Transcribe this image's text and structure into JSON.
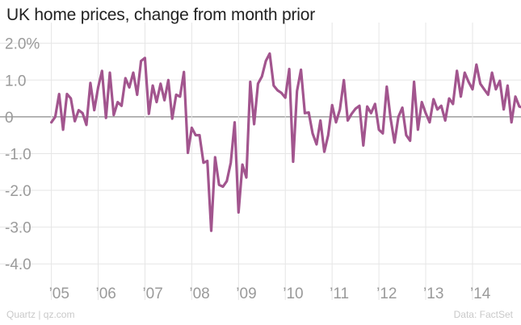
{
  "title": "UK home prices, change from month prior",
  "footer": {
    "source_left": "Quartz | qz.com",
    "source_right": "Data: FactSet"
  },
  "colors": {
    "line": "#a2558e",
    "grid": "#e6e6e6",
    "zero_line": "#8a8a8a",
    "tick_text": "#9a9a9a"
  },
  "chart_data": {
    "type": "line",
    "title": "UK home prices, change from month prior",
    "xlabel": "",
    "ylabel": "",
    "ylim": [
      -4.5,
      2.3
    ],
    "xlim": [
      2004.8,
      2014.95
    ],
    "y_ticks": [
      {
        "value": 2.0,
        "label": "2.0%"
      },
      {
        "value": 1.0,
        "label": "1.0"
      },
      {
        "value": 0,
        "label": "0"
      },
      {
        "value": -1.0,
        "label": "-1.0"
      },
      {
        "value": -2.0,
        "label": "-2.0"
      },
      {
        "value": -3.0,
        "label": "-3.0"
      },
      {
        "value": -4.0,
        "label": "-4.0"
      }
    ],
    "x_ticks": [
      {
        "value": 2005,
        "label": "’05"
      },
      {
        "value": 2006,
        "label": "’06"
      },
      {
        "value": 2007,
        "label": "’07"
      },
      {
        "value": 2008,
        "label": "’08"
      },
      {
        "value": 2009,
        "label": "’09"
      },
      {
        "value": 2010,
        "label": "’10"
      },
      {
        "value": 2011,
        "label": "’11"
      },
      {
        "value": 2012,
        "label": "’12"
      },
      {
        "value": 2013,
        "label": "’13"
      },
      {
        "value": 2014,
        "label": "’14"
      }
    ],
    "grid": true,
    "x_start": "2005-01",
    "series": [
      {
        "values": [
          -0.15,
          0.0,
          0.62,
          -0.35,
          0.62,
          0.5,
          -0.12,
          0.18,
          0.1,
          -0.22,
          0.92,
          0.18,
          0.8,
          1.25,
          -0.03,
          1.2,
          0.05,
          0.4,
          0.3,
          1.05,
          0.8,
          1.2,
          0.6,
          1.52,
          1.6,
          0.08,
          0.85,
          0.4,
          0.9,
          0.45,
          1.0,
          -0.05,
          0.6,
          0.55,
          1.22,
          -0.98,
          -0.3,
          -0.5,
          -0.5,
          -1.25,
          -1.2,
          -3.1,
          -1.1,
          -1.85,
          -1.9,
          -1.75,
          -1.25,
          -0.15,
          -2.6,
          -1.3,
          -1.65,
          0.95,
          -0.2,
          0.9,
          1.1,
          1.52,
          1.72,
          0.85,
          0.72,
          0.65,
          0.52,
          1.3,
          -1.22,
          0.7,
          1.28,
          0.1,
          0.12,
          -0.45,
          -0.75,
          -0.1,
          -0.95,
          -0.5,
          0.32,
          -0.15,
          0.2,
          1.0,
          -0.1,
          0.08,
          0.22,
          0.3,
          -0.78,
          0.28,
          0.1,
          0.35,
          -0.35,
          -0.45,
          0.82,
          -0.05,
          -0.7,
          0.0,
          0.25,
          -0.5,
          -0.65,
          0.95,
          -0.35,
          0.4,
          0.1,
          -0.15,
          0.48,
          0.2,
          0.3,
          -0.1,
          0.5,
          0.35,
          1.25,
          0.55,
          1.2,
          0.95,
          0.75,
          1.42,
          0.9,
          0.75,
          0.6,
          1.2,
          0.75,
          0.98,
          0.2,
          0.85,
          -0.15,
          0.55,
          0.28,
          0.25
        ]
      }
    ]
  }
}
